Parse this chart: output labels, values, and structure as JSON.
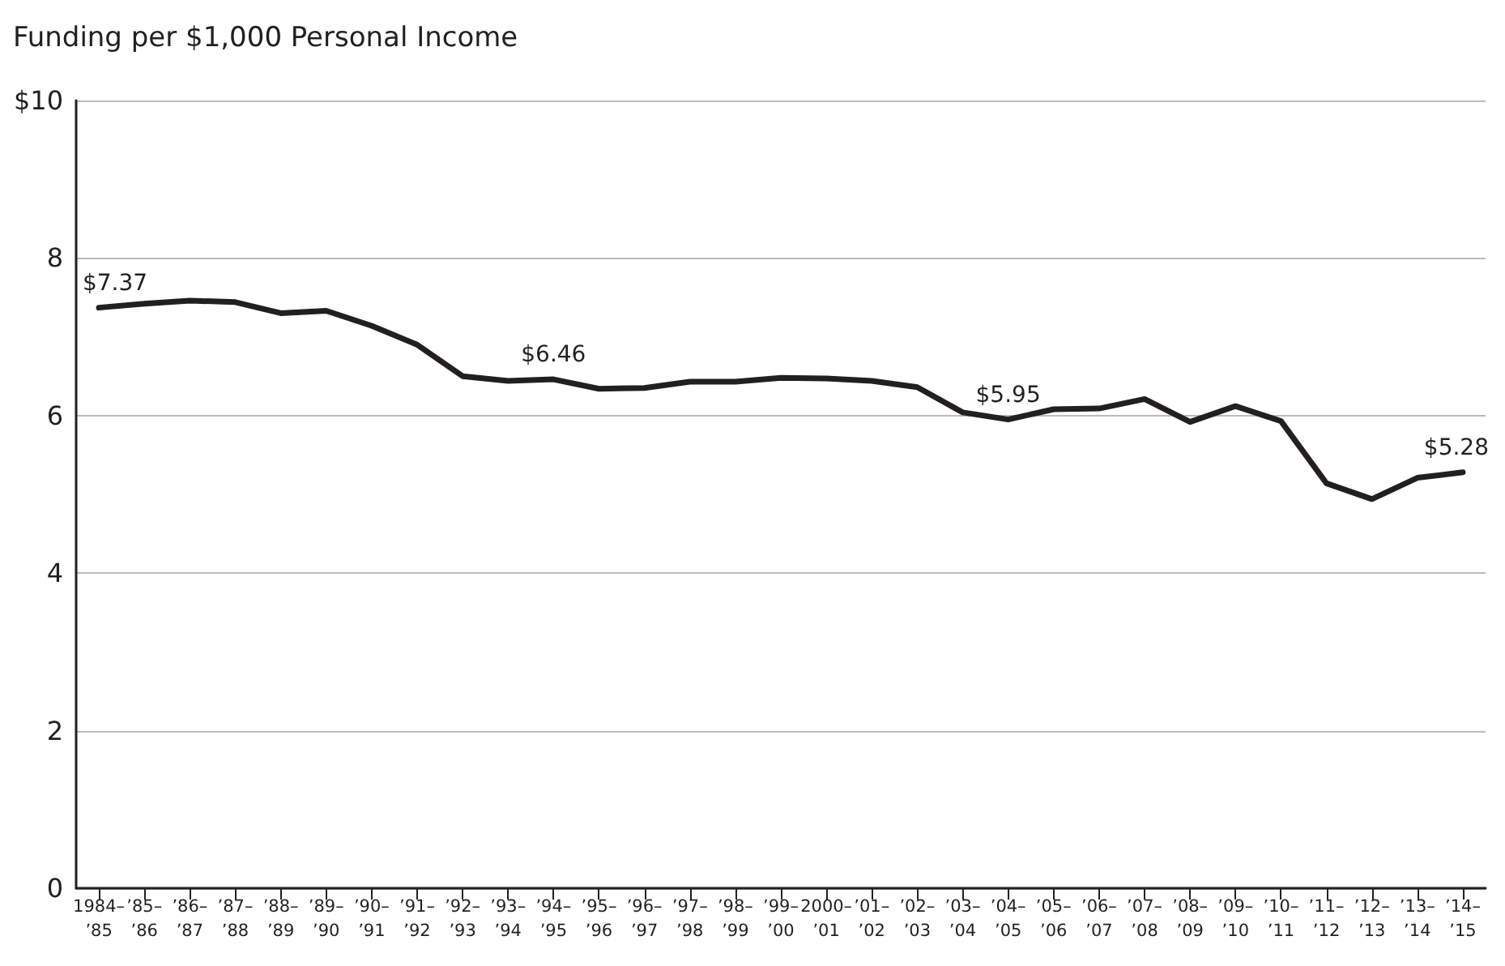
{
  "chart_data": {
    "type": "line",
    "title": "Funding per $1,000 Personal Income",
    "categories": [
      "1984–\n’85",
      "’85–\n’86",
      "’86–\n’87",
      "’87–\n’88",
      "’88–\n’89",
      "’89–\n’90",
      "’90–\n’91",
      "’91–\n’92",
      "’92–\n’93",
      "’93–\n’94",
      "’94–\n’95",
      "’95–\n’96",
      "’96–\n’97",
      "’97–\n’98",
      "’98–\n’99",
      "’99–\n’00",
      "2000–\n’01",
      "’01–\n’02",
      "’02–\n’03",
      "’03–\n’04",
      "’04–\n’05",
      "’05–\n’06",
      "’06–\n’07",
      "’07–\n’08",
      "’08–\n’09",
      "’09–\n’10",
      "’10–\n’11",
      "’11–\n’12",
      "’12–\n’13",
      "’13–\n’14",
      "’14–\n’15"
    ],
    "series": [
      {
        "color": "#231f20",
        "values": [
          7.37,
          7.42,
          7.46,
          7.44,
          7.3,
          7.33,
          7.14,
          6.9,
          6.5,
          6.44,
          6.46,
          6.34,
          6.35,
          6.43,
          6.43,
          6.48,
          6.47,
          6.44,
          6.36,
          6.04,
          5.95,
          6.08,
          6.09,
          6.21,
          5.92,
          6.12,
          5.93,
          5.14,
          4.94,
          5.21,
          5.28
        ],
        "value_labels": [
          "$7.37",
          null,
          null,
          null,
          null,
          null,
          null,
          null,
          null,
          null,
          "$6.46",
          null,
          null,
          null,
          null,
          null,
          null,
          null,
          null,
          null,
          "$5.95",
          null,
          null,
          null,
          null,
          null,
          null,
          null,
          null,
          null,
          "$5.28"
        ]
      }
    ],
    "ylim": [
      0,
      10
    ],
    "yticks": [
      0,
      2,
      4,
      6,
      8,
      {
        "value": 10,
        "label": "$10"
      }
    ],
    "grid": "y",
    "marker": "none",
    "line_style": "solid"
  }
}
